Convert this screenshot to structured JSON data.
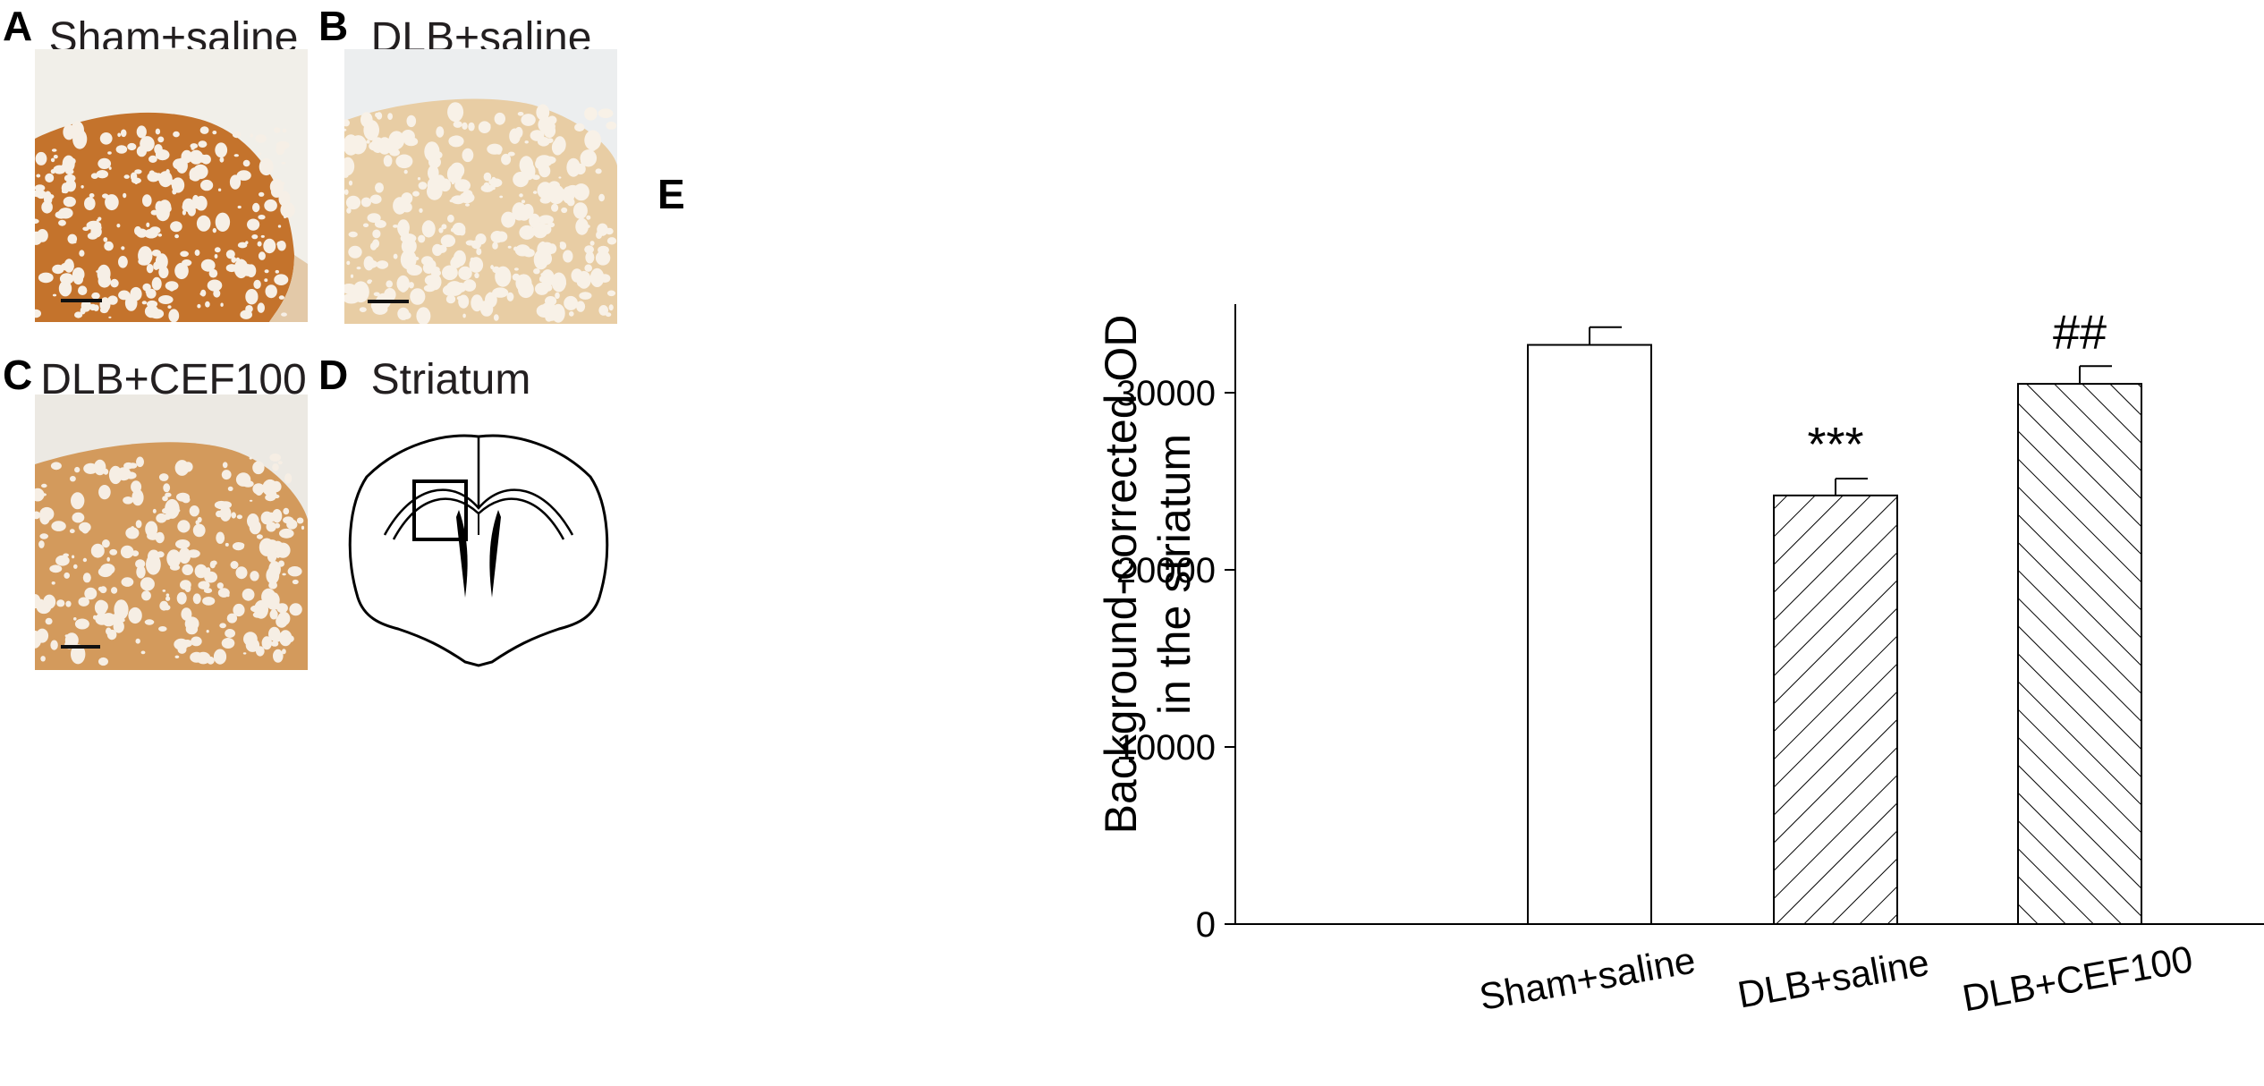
{
  "panels": {
    "a": {
      "letter": "A",
      "title": "Sham+saline"
    },
    "b": {
      "letter": "B",
      "title": "DLB+saline"
    },
    "c": {
      "letter": "C",
      "title": "DLB+CEF100"
    },
    "d": {
      "letter": "D",
      "title": "Striatum"
    },
    "e": {
      "letter": "E"
    }
  },
  "colors": {
    "sham_stain": "#c4732c",
    "dlb_stain": "#e8cda4",
    "cef_stain": "#d39a5c",
    "background_tissue": "#f1efe9"
  },
  "chart_data": {
    "type": "bar",
    "categories": [
      "Sham+saline",
      "DLB+saline",
      "DLB+CEF100"
    ],
    "values": [
      32700,
      24200,
      30500
    ],
    "errors": [
      1000,
      950,
      1000
    ],
    "annotations": [
      "",
      "***",
      "##"
    ],
    "fills": [
      "open",
      "hatched",
      "hatched-reverse"
    ],
    "ylabel_line1": "Background-corrected OD",
    "ylabel_line2": "in the striatum",
    "ylim": [
      0,
      35000
    ],
    "yticks": [
      0,
      10000,
      20000,
      30000
    ],
    "grid": false
  }
}
